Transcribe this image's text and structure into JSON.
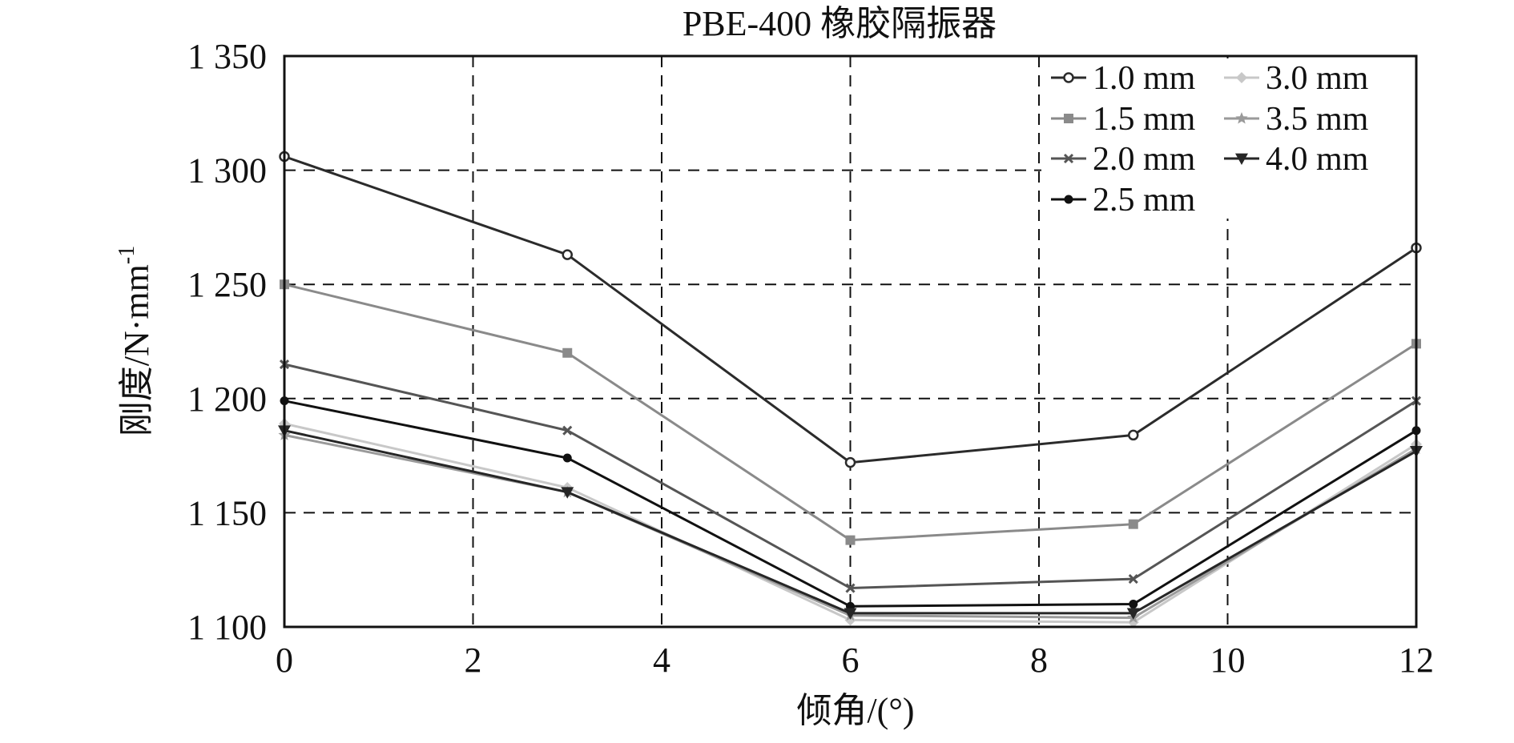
{
  "chart_data": {
    "type": "line",
    "title": "PBE-400 橡胶隔振器",
    "xlabel": "倾角/(°)",
    "ylabel": "刚度/N·mm",
    "ylabel_superscript": "-1",
    "xlim": [
      0,
      12
    ],
    "ylim": [
      1100,
      1350
    ],
    "xticks": [
      0,
      2,
      4,
      6,
      8,
      10,
      12
    ],
    "yticks": [
      1100,
      1150,
      1200,
      1250,
      1300,
      1350
    ],
    "ytick_labels": [
      "1 100",
      "1 150",
      "1 200",
      "1 250",
      "1 300",
      "1 350"
    ],
    "x": [
      0,
      3,
      6,
      9,
      12
    ],
    "grid": "dashed",
    "legend_position": "top-right",
    "series": [
      {
        "name": "1.0 mm",
        "values": [
          1306,
          1263,
          1172,
          1184,
          1266
        ],
        "color": "#2b2b2b",
        "marker": "circle-open"
      },
      {
        "name": "1.5 mm",
        "values": [
          1250,
          1220,
          1138,
          1145,
          1224
        ],
        "color": "#8a8a8a",
        "marker": "square"
      },
      {
        "name": "2.0 mm",
        "values": [
          1215,
          1186,
          1117,
          1121,
          1199
        ],
        "color": "#555555",
        "marker": "x"
      },
      {
        "name": "2.5 mm",
        "values": [
          1199,
          1174,
          1109,
          1110,
          1186
        ],
        "color": "#111111",
        "marker": "dot"
      },
      {
        "name": "3.0 mm",
        "values": [
          1189,
          1161,
          1103,
          1102,
          1180
        ],
        "color": "#c8c8c8",
        "marker": "diamond"
      },
      {
        "name": "3.5 mm",
        "values": [
          1184,
          1159,
          1105,
          1104,
          1178
        ],
        "color": "#9a9a9a",
        "marker": "star"
      },
      {
        "name": "4.0 mm",
        "values": [
          1186,
          1159,
          1106,
          1106,
          1177
        ],
        "color": "#262626",
        "marker": "triangle-down"
      }
    ]
  }
}
